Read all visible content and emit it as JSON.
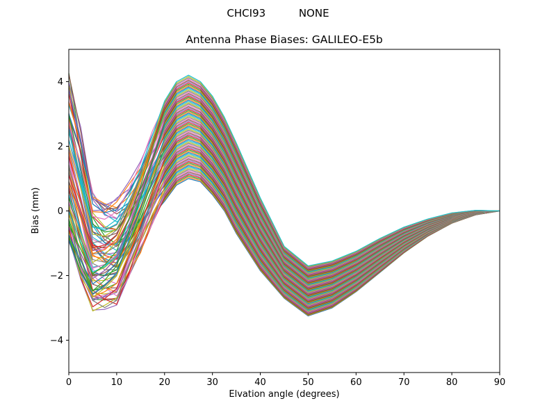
{
  "chart_data": {
    "type": "line",
    "suptitle": "CHCI93          NONE",
    "title": "Antenna Phase Biases: GALILEO-E5b",
    "xlabel": "Elvation angle (degrees)",
    "ylabel": "Bias (mm)",
    "xlim": [
      0,
      90
    ],
    "ylim": [
      -5,
      5
    ],
    "xticks": [
      0,
      10,
      20,
      30,
      40,
      50,
      60,
      70,
      80,
      90
    ],
    "yticks": [
      -4,
      -2,
      0,
      2,
      4
    ],
    "grid": false,
    "legend": "none",
    "x": [
      0,
      2.5,
      5,
      7.5,
      10,
      12.5,
      15,
      17.5,
      20,
      22.5,
      25,
      27.5,
      30,
      32.5,
      35,
      40,
      45,
      50,
      55,
      60,
      65,
      70,
      75,
      80,
      85,
      90
    ],
    "envelope_max": [
      4.3,
      2.6,
      0.6,
      0.3,
      0.4,
      0.9,
      1.6,
      2.5,
      3.4,
      4.0,
      4.2,
      4.0,
      3.55,
      2.9,
      2.1,
      0.4,
      -1.1,
      -1.7,
      -1.55,
      -1.25,
      -0.85,
      -0.5,
      -0.25,
      -0.06,
      0.02,
      0.0
    ],
    "envelope_min": [
      -1.0,
      -2.2,
      -3.1,
      -3.05,
      -2.95,
      -2.1,
      -1.3,
      -0.4,
      0.3,
      0.8,
      1.0,
      0.9,
      0.5,
      0.0,
      -0.7,
      -1.85,
      -2.7,
      -3.25,
      -3.0,
      -2.5,
      -1.9,
      -1.3,
      -0.78,
      -0.38,
      -0.12,
      0.0
    ],
    "series_count_estimate": 80,
    "peak": {
      "x": 25,
      "y_max": 4.2
    },
    "trough": {
      "x": 50,
      "y_min": -3.25
    },
    "converges_to": {
      "x": 90,
      "y": 0
    },
    "colors": [
      "#1f77b4",
      "#ff7f0e",
      "#2ca02c",
      "#d62728",
      "#9467bd",
      "#8c564b",
      "#e377c2",
      "#7f7f7f",
      "#bcbd22",
      "#17becf"
    ]
  }
}
